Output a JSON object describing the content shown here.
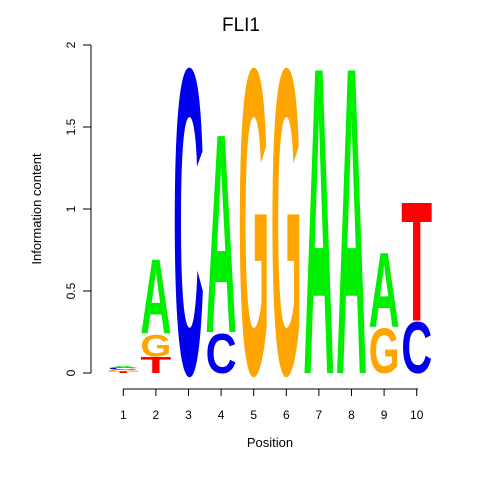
{
  "chart_data": {
    "type": "sequence_logo",
    "title": "FLI1",
    "xlabel": "Position",
    "ylabel": "Information content",
    "ylim": [
      0,
      2
    ],
    "yticks": [
      "0",
      "0.5",
      "1",
      "1.5",
      "2"
    ],
    "yticks_values": [
      0,
      0.5,
      1,
      1.5,
      2
    ],
    "positions": [
      "1",
      "2",
      "3",
      "4",
      "5",
      "6",
      "7",
      "8",
      "9",
      "10"
    ],
    "colors": {
      "A": "#00ee00",
      "C": "#0000ee",
      "G": "#ffa500",
      "T": "#ff0000"
    },
    "stacks": [
      [
        {
          "letter": "T",
          "value": 0.01
        },
        {
          "letter": "G",
          "value": 0.01
        },
        {
          "letter": "C",
          "value": 0.01
        },
        {
          "letter": "A",
          "value": 0.01
        }
      ],
      [
        {
          "letter": "T",
          "value": 0.1
        },
        {
          "letter": "G",
          "value": 0.14
        },
        {
          "letter": "A",
          "value": 0.47
        }
      ],
      [
        {
          "letter": "C",
          "value": 1.92
        }
      ],
      [
        {
          "letter": "C",
          "value": 0.25
        },
        {
          "letter": "A",
          "value": 1.25
        }
      ],
      [
        {
          "letter": "G",
          "value": 1.92
        }
      ],
      [
        {
          "letter": "G",
          "value": 1.92
        }
      ],
      [
        {
          "letter": "A",
          "value": 1.93
        }
      ],
      [
        {
          "letter": "A",
          "value": 1.93
        }
      ],
      [
        {
          "letter": "G",
          "value": 0.28
        },
        {
          "letter": "A",
          "value": 0.47
        }
      ],
      [
        {
          "letter": "C",
          "value": 0.32
        },
        {
          "letter": "T",
          "value": 0.75
        }
      ]
    ]
  }
}
